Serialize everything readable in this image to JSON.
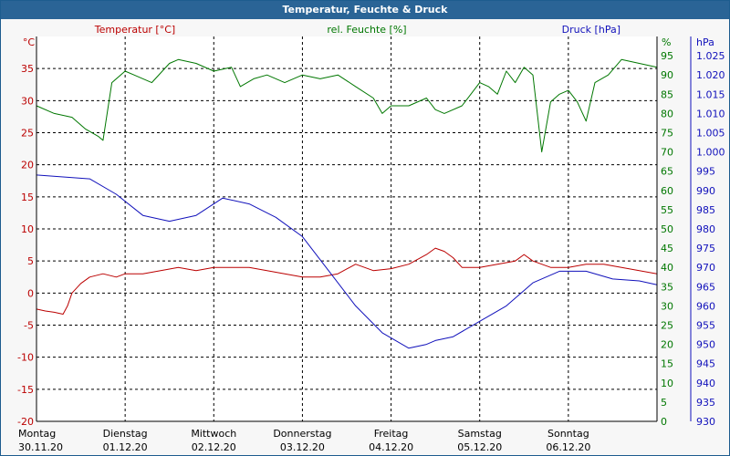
{
  "title": "Temperatur, Feuchte & Druck",
  "chart_data": {
    "type": "line",
    "title": "Temperatur, Feuchte & Druck",
    "grid": true,
    "legend_placement": "top",
    "colors": {
      "temperature": "#bb0000",
      "humidity": "#007700",
      "pressure": "#1111bb",
      "title_bar": "#2a6496",
      "background": "#ffffff"
    },
    "x_ticks": [
      {
        "day": "Montag",
        "date": "30.11.20",
        "x": 0
      },
      {
        "day": "Dienstag",
        "date": "01.12.20",
        "x": 1
      },
      {
        "day": "Mittwoch",
        "date": "02.12.20",
        "x": 2
      },
      {
        "day": "Donnerstag",
        "date": "03.12.20",
        "x": 3
      },
      {
        "day": "Freitag",
        "date": "04.12.20",
        "x": 4
      },
      {
        "day": "Samstag",
        "date": "05.12.20",
        "x": 5
      },
      {
        "day": "Sonntag",
        "date": "06.12.20",
        "x": 6
      }
    ],
    "xlim": [
      0,
      7
    ],
    "axes": {
      "temperature": {
        "label": "Temperatur [°C]",
        "unit": "°C",
        "ylim": [
          -20,
          40
        ],
        "ticks": [
          "-20",
          "-15",
          "-10",
          "-5",
          "0",
          "5",
          "10",
          "15",
          "20",
          "25",
          "30",
          "35"
        ]
      },
      "humidity": {
        "label": "rel. Feuchte [%]",
        "unit": "%",
        "ylim": [
          0,
          100
        ],
        "ticks": [
          "0",
          "5",
          "10",
          "15",
          "20",
          "25",
          "30",
          "35",
          "40",
          "45",
          "50",
          "55",
          "60",
          "65",
          "70",
          "75",
          "80",
          "85",
          "90",
          "95"
        ]
      },
      "pressure": {
        "label": "Druck [hPa]",
        "unit": "hPa",
        "ylim": [
          930,
          1030
        ],
        "ticks": [
          "930",
          "935",
          "940",
          "945",
          "950",
          "955",
          "960",
          "965",
          "970",
          "975",
          "980",
          "985",
          "990",
          "995",
          "1.000",
          "1.005",
          "1.010",
          "1.015",
          "1.020",
          "1.025"
        ]
      }
    },
    "series": [
      {
        "name": "Temperatur [°C]",
        "axis": "temperature",
        "x": [
          0,
          0.1,
          0.2,
          0.3,
          0.35,
          0.4,
          0.5,
          0.6,
          0.75,
          0.9,
          1.0,
          1.2,
          1.4,
          1.6,
          1.8,
          2.0,
          2.2,
          2.4,
          2.6,
          2.8,
          3.0,
          3.2,
          3.4,
          3.6,
          3.8,
          4.0,
          4.2,
          4.4,
          4.5,
          4.6,
          4.7,
          4.8,
          5.0,
          5.2,
          5.4,
          5.5,
          5.6,
          5.8,
          6.0,
          6.2,
          6.4,
          6.6,
          6.8,
          7.0
        ],
        "values": [
          -2.5,
          -2.8,
          -3.0,
          -3.3,
          -2.0,
          0.0,
          1.5,
          2.5,
          3.0,
          2.5,
          3.0,
          3.0,
          3.5,
          4.0,
          3.5,
          4.0,
          4.0,
          4.0,
          3.5,
          3.0,
          2.5,
          2.5,
          3.0,
          4.5,
          3.5,
          3.8,
          4.5,
          6.0,
          7.0,
          6.5,
          5.5,
          4.0,
          4.0,
          4.5,
          5.0,
          6.0,
          5.0,
          4.0,
          4.0,
          4.5,
          4.5,
          4.0,
          3.5,
          3.0
        ]
      },
      {
        "name": "rel. Feuchte [%]",
        "axis": "humidity",
        "x": [
          0,
          0.2,
          0.4,
          0.55,
          0.7,
          0.75,
          0.85,
          1.0,
          1.1,
          1.3,
          1.5,
          1.6,
          1.8,
          2.0,
          2.2,
          2.3,
          2.45,
          2.6,
          2.8,
          3.0,
          3.2,
          3.4,
          3.6,
          3.8,
          3.9,
          4.0,
          4.2,
          4.4,
          4.5,
          4.6,
          4.8,
          5.0,
          5.1,
          5.2,
          5.3,
          5.4,
          5.5,
          5.6,
          5.7,
          5.8,
          5.9,
          6.0,
          6.1,
          6.2,
          6.3,
          6.45,
          6.6,
          6.8,
          7.0
        ],
        "values": [
          82,
          80,
          79,
          76,
          74,
          73,
          88,
          91,
          90,
          88,
          93,
          94,
          93,
          91,
          92,
          87,
          89,
          90,
          88,
          90,
          89,
          90,
          87,
          84,
          80,
          82,
          82,
          84,
          81,
          80,
          82,
          88,
          87,
          85,
          91,
          88,
          92,
          90,
          70,
          83,
          85,
          86,
          83,
          78,
          88,
          90,
          94,
          93,
          92
        ]
      },
      {
        "name": "Druck [hPa]",
        "axis": "pressure",
        "x": [
          0,
          0.3,
          0.6,
          0.9,
          1.2,
          1.5,
          1.8,
          2.1,
          2.4,
          2.7,
          3.0,
          3.3,
          3.6,
          3.9,
          4.2,
          4.4,
          4.5,
          4.7,
          5.0,
          5.3,
          5.6,
          5.9,
          6.2,
          6.5,
          6.8,
          7.0
        ],
        "values": [
          994,
          993.5,
          993,
          989,
          983.5,
          982,
          983.5,
          988,
          986.5,
          983,
          978,
          969,
          960,
          953,
          949,
          950,
          951,
          952,
          956,
          960,
          966,
          969,
          969,
          967,
          966.5,
          965.5
        ]
      }
    ]
  }
}
